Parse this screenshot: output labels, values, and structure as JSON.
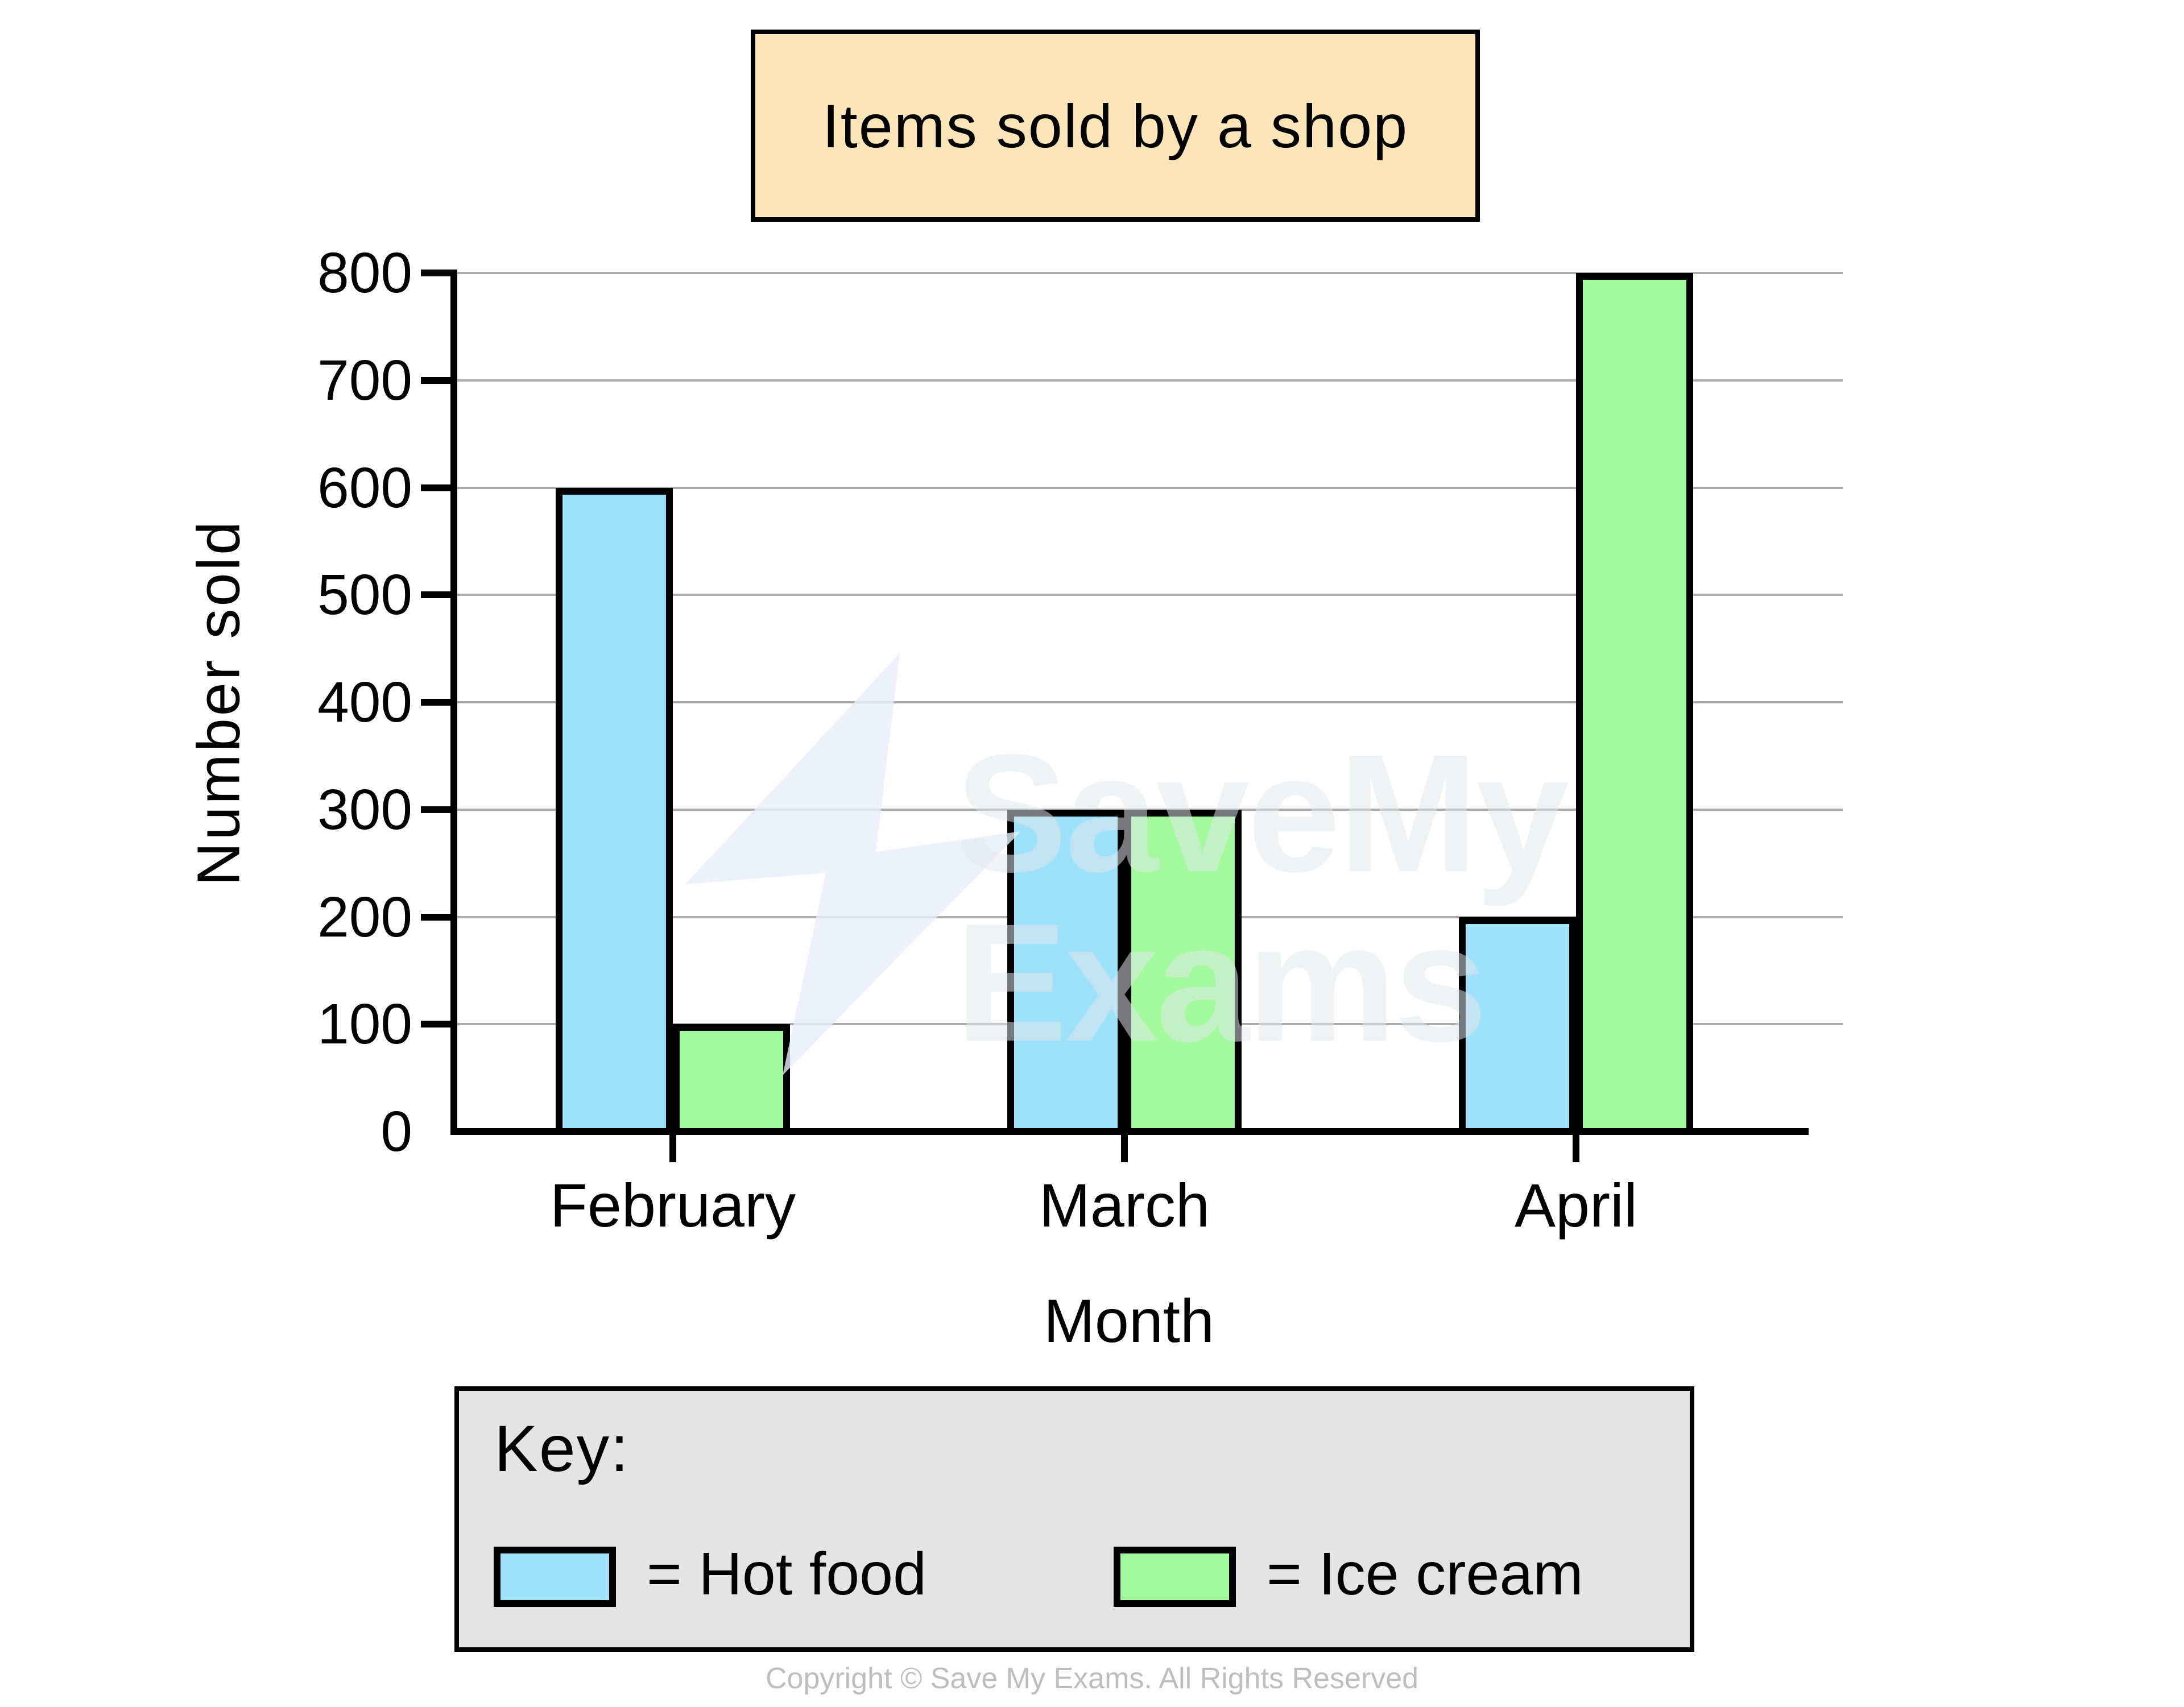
{
  "title": "Items sold by a shop",
  "chart_data": {
    "type": "bar",
    "categories": [
      "February",
      "March",
      "April"
    ],
    "series": [
      {
        "name": "Hot food",
        "color": "#9DE1FA",
        "values": [
          600,
          300,
          200
        ]
      },
      {
        "name": "Ice cream",
        "color": "#A2FA9D",
        "values": [
          100,
          300,
          800
        ]
      }
    ],
    "title": "Items sold by a shop",
    "xlabel": "Month",
    "ylabel": "Number sold",
    "ylim": [
      0,
      800
    ],
    "yticks": [
      0,
      100,
      200,
      300,
      400,
      500,
      600,
      700,
      800
    ],
    "grid": true,
    "grouped": true,
    "legend_position": "bottom-box"
  },
  "key": {
    "heading": "Key:",
    "items": [
      {
        "swatch_color": "#9DE1FA",
        "label": "= Hot food"
      },
      {
        "swatch_color": "#A2FA9D",
        "label": "= Ice cream"
      }
    ]
  },
  "watermark": {
    "line1": "SaveMy",
    "line2": "Exams",
    "icon": "lightning-bolt-icon"
  },
  "footer": {
    "copyright": "Copyright © Save My Exams. All Rights Reserved"
  },
  "colors": {
    "title_box_bg": "#FCE5B9",
    "key_box_bg": "#E4E4E4",
    "grid_line": "#ABABAB",
    "axis": "#000000",
    "hot_food_bar": "#9DE1FA",
    "ice_cream_bar": "#A2FA9D",
    "watermark_text": "#E4E7EC"
  }
}
